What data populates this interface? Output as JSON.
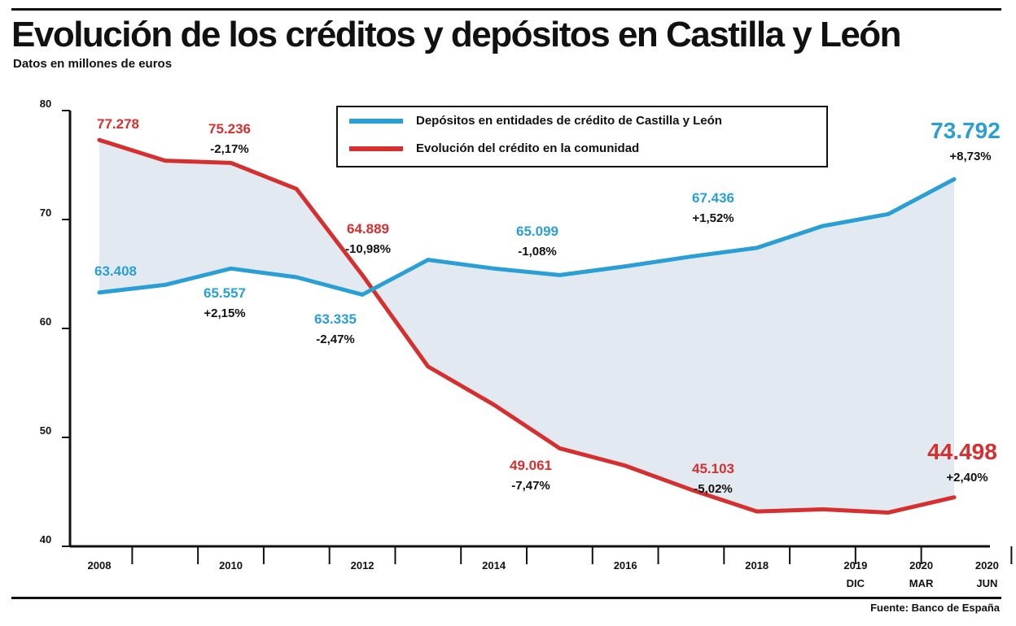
{
  "header": {
    "title": "Evolución de los créditos y depósitos en Castilla y León",
    "subtitle": "Datos en millones de euros",
    "source": "Fuente: Banco de España"
  },
  "legend": {
    "deposits": "Depósitos en entidades de crédito de Castilla y León",
    "credit": "Evolución del crédito en la comunidad"
  },
  "colors": {
    "deposits": "#2a9fd6",
    "credit": "#d62f2f",
    "fill": "#e3e9f1",
    "axis": "#111111"
  },
  "chart_data": {
    "type": "line",
    "ylim": [
      40,
      80
    ],
    "yticks": [
      {
        "value": 80,
        "label": "80"
      },
      {
        "value": 70,
        "label": "70"
      },
      {
        "value": 60,
        "label": "60"
      },
      {
        "value": 50,
        "label": "50"
      },
      {
        "value": 40,
        "label": "40"
      }
    ],
    "x_count": 14,
    "categories": [
      {
        "i": 0,
        "label": "2008"
      },
      {
        "i": 2,
        "label": "2010"
      },
      {
        "i": 4,
        "label": "2012"
      },
      {
        "i": 6,
        "label": "2014"
      },
      {
        "i": 8,
        "label": "2016"
      },
      {
        "i": 10,
        "label": "2018"
      },
      {
        "i": 11.5,
        "label": "2019",
        "sub": "DIC"
      },
      {
        "i": 12.5,
        "label": "2020",
        "sub": "MAR"
      },
      {
        "i": 13.5,
        "label": "2020",
        "sub": "JUN"
      }
    ],
    "series": [
      {
        "name": "Depósitos en entidades de crédito de Castilla y León",
        "x": [
          0,
          1,
          2,
          3,
          4,
          5,
          6,
          7,
          8,
          9,
          10,
          11,
          12,
          13
        ],
        "values": [
          63.3,
          64,
          65.5,
          64.7,
          63.1,
          66.3,
          65.5,
          64.9,
          65.7,
          66.6,
          67.4,
          69.4,
          70.5,
          73.7
        ]
      },
      {
        "name": "Evolución del crédito en la comunidad",
        "x": [
          0,
          1,
          2,
          3,
          4,
          5,
          6,
          7,
          8,
          9,
          10,
          11,
          12,
          13
        ],
        "values": [
          77.3,
          75.4,
          75.2,
          72.8,
          64.9,
          56.5,
          53,
          49,
          47.4,
          45.2,
          43.2,
          43.4,
          43.1,
          44.5
        ]
      }
    ],
    "annotations": [
      {
        "series": "credit",
        "value": "77.278",
        "change": ""
      },
      {
        "series": "credit",
        "value": "75.236",
        "change": "-2,17%"
      },
      {
        "series": "credit",
        "value": "64.889",
        "change": "-10,98%"
      },
      {
        "series": "credit",
        "value": "49.061",
        "change": "-7,47%"
      },
      {
        "series": "credit",
        "value": "45.103",
        "change": "-5,02%"
      },
      {
        "series": "credit",
        "value": "44.498",
        "change": "+2,40%"
      },
      {
        "series": "deposits",
        "value": "63.408",
        "change": ""
      },
      {
        "series": "deposits",
        "value": "65.557",
        "change": "+2,15%"
      },
      {
        "series": "deposits",
        "value": "63.335",
        "change": "-2,47%"
      },
      {
        "series": "deposits",
        "value": "65.099",
        "change": "-1,08%"
      },
      {
        "series": "deposits",
        "value": "67.436",
        "change": "+1,52%"
      },
      {
        "series": "deposits",
        "value": "73.792",
        "change": "+8,73%"
      }
    ]
  }
}
